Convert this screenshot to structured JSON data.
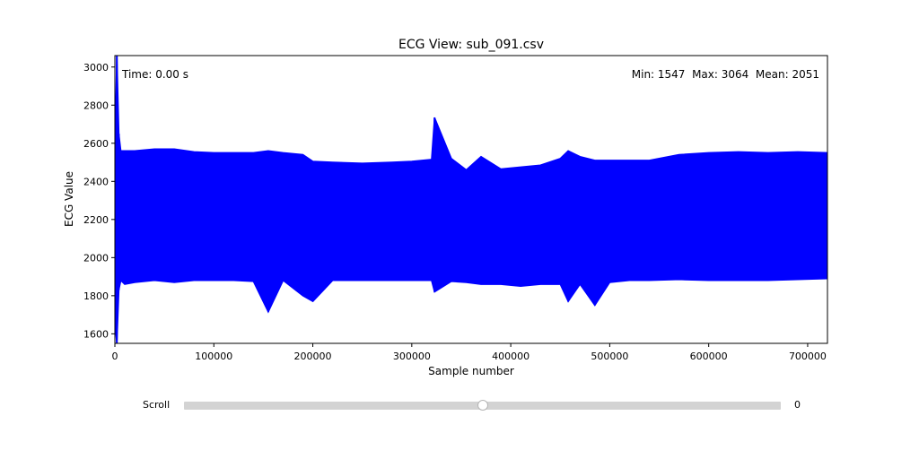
{
  "chart_data": {
    "type": "line",
    "title": "ECG View: sub_091.csv",
    "xlabel": "Sample number",
    "ylabel": "ECG Value",
    "xlim": [
      0,
      720000
    ],
    "ylim": [
      1550,
      3060
    ],
    "xticks": [
      0,
      100000,
      200000,
      300000,
      400000,
      500000,
      600000,
      700000
    ],
    "yticks": [
      1600,
      1800,
      2000,
      2200,
      2400,
      2600,
      2800,
      3000
    ],
    "grid": false,
    "line_color": "#0000ff",
    "series": [
      {
        "x": [
          0,
          2000,
          4000,
          6000,
          10000,
          20000,
          40000,
          60000,
          80000,
          100000,
          120000,
          140000,
          155000,
          170000,
          190000,
          200000,
          220000,
          250000,
          280000,
          300000,
          320000,
          323000,
          340000,
          355000,
          370000,
          390000,
          410000,
          430000,
          450000,
          458000,
          470000,
          485000,
          500000,
          520000,
          540000,
          570000,
          600000,
          630000,
          660000,
          690000,
          720000
        ],
        "lower": [
          1660,
          1550,
          1830,
          1880,
          1860,
          1870,
          1880,
          1870,
          1880,
          1880,
          1880,
          1875,
          1715,
          1880,
          1800,
          1770,
          1880,
          1880,
          1880,
          1880,
          1880,
          1820,
          1875,
          1870,
          1860,
          1860,
          1850,
          1860,
          1860,
          1770,
          1860,
          1750,
          1870,
          1880,
          1880,
          1885,
          1880,
          1880,
          1880,
          1885,
          1890
        ],
        "upper": [
          2550,
          3064,
          2650,
          2560,
          2560,
          2560,
          2570,
          2570,
          2555,
          2550,
          2550,
          2550,
          2560,
          2550,
          2540,
          2505,
          2500,
          2495,
          2500,
          2505,
          2515,
          2735,
          2520,
          2460,
          2530,
          2465,
          2475,
          2485,
          2520,
          2560,
          2530,
          2510,
          2510,
          2510,
          2510,
          2540,
          2550,
          2555,
          2550,
          2555,
          2550
        ]
      }
    ]
  },
  "annotations": {
    "time": "Time: 0.00 s",
    "stats": "Min: 1547  Max: 3064  Mean: 2051"
  },
  "slider": {
    "label": "Scroll",
    "value": "0",
    "position": 0.5
  }
}
